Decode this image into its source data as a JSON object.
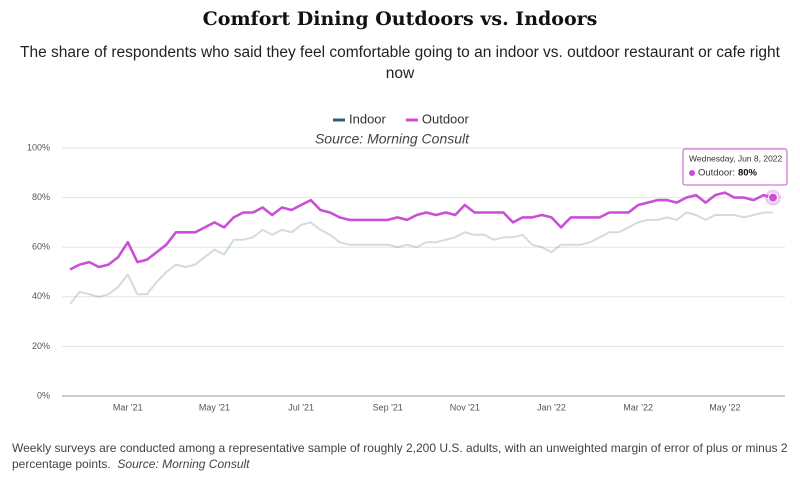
{
  "chart_data": {
    "type": "line",
    "title": "Comfort Dining Outdoors vs. Indoors",
    "subtitle": "The share of respondents who said they feel comfortable going to an indoor vs. outdoor restaurant or cafe right now",
    "source": "Source: Morning Consult",
    "categories": [
      null,
      null,
      null,
      null,
      null,
      null,
      "Mar '21",
      null,
      null,
      null,
      null,
      null,
      null,
      null,
      null,
      "May '21",
      null,
      null,
      null,
      null,
      null,
      null,
      null,
      null,
      "Jul '21",
      null,
      null,
      null,
      null,
      null,
      null,
      null,
      null,
      "Sep '21",
      null,
      null,
      null,
      null,
      null,
      null,
      null,
      "Nov '21",
      null,
      null,
      null,
      null,
      null,
      null,
      null,
      null,
      "Jan '22",
      null,
      null,
      null,
      null,
      null,
      null,
      null,
      null,
      "Mar '22",
      null,
      null,
      null,
      null,
      null,
      null,
      null,
      null,
      "May '22",
      null,
      null,
      null,
      null,
      null
    ],
    "series": [
      {
        "name": "Indoor",
        "color": "#2e5f7a",
        "highlighted": false,
        "values": [
          37,
          42,
          41,
          40,
          41,
          44,
          49,
          41,
          41,
          46,
          50,
          53,
          52,
          53,
          56,
          59,
          57,
          63,
          63,
          64,
          67,
          65,
          67,
          66,
          69,
          70,
          67,
          65,
          62,
          61,
          61,
          61,
          61,
          61,
          60,
          61,
          60,
          62,
          62,
          63,
          64,
          66,
          65,
          65,
          63,
          64,
          64,
          65,
          61,
          60,
          58,
          61,
          61,
          61,
          62,
          64,
          66,
          66,
          68,
          70,
          71,
          71,
          72,
          71,
          74,
          73,
          71,
          73,
          73,
          73,
          72,
          73,
          74,
          74
        ]
      },
      {
        "name": "Outdoor",
        "color": "#c94fd6",
        "highlighted": true,
        "values": [
          51,
          53,
          54,
          52,
          53,
          56,
          62,
          54,
          55,
          58,
          61,
          66,
          66,
          66,
          68,
          70,
          68,
          72,
          74,
          74,
          76,
          73,
          76,
          75,
          77,
          79,
          75,
          74,
          72,
          71,
          71,
          71,
          71,
          71,
          72,
          71,
          73,
          74,
          73,
          74,
          73,
          77,
          74,
          74,
          74,
          74,
          70,
          72,
          72,
          73,
          72,
          68,
          72,
          72,
          72,
          72,
          74,
          74,
          74,
          77,
          78,
          79,
          79,
          78,
          80,
          81,
          78,
          81,
          82,
          80,
          80,
          79,
          81,
          80
        ]
      }
    ],
    "ylim": [
      0,
      100
    ],
    "yticks": [
      {
        "value": 0,
        "label": "0%"
      },
      {
        "value": 20,
        "label": "20%"
      },
      {
        "value": 40,
        "label": "40%"
      },
      {
        "value": 60,
        "label": "60%"
      },
      {
        "value": 80,
        "label": "80%"
      },
      {
        "value": 100,
        "label": "100%"
      }
    ],
    "grid": true,
    "legend": "top",
    "tooltip": {
      "date": "Wednesday, Jun 8, 2022",
      "text": "Outdoor:",
      "value": "80%"
    },
    "footnote": {
      "text": "Weekly surveys are conducted among a representative sample of roughly 2,200 U.S. adults, with an unweighted margin of error of plus or minus 2 percentage points.",
      "source": "Source: Morning Consult"
    }
  }
}
